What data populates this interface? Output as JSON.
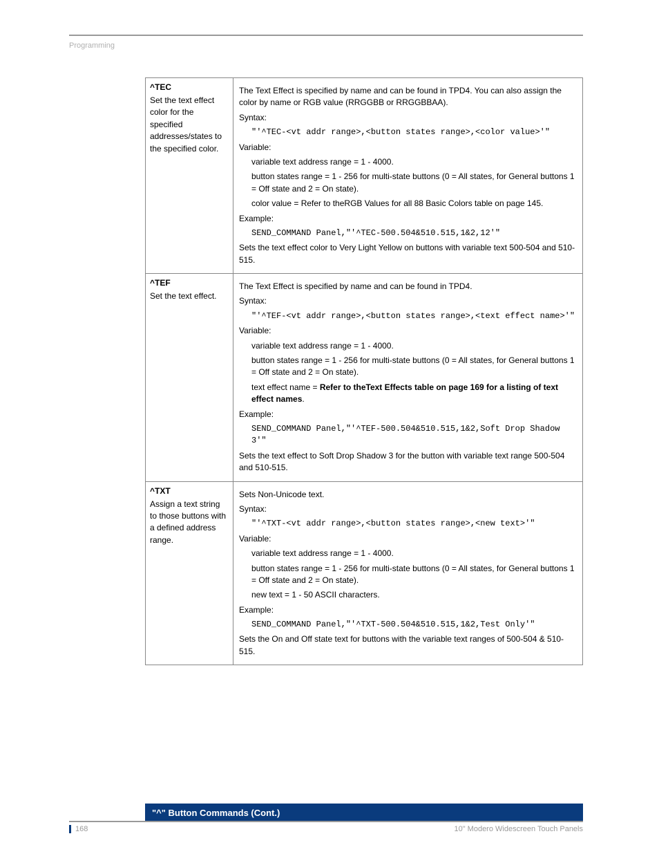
{
  "header": {
    "breadcrumb": "Programming"
  },
  "table": {
    "rows": [
      {
        "cmd": "^TEC",
        "cmd_desc": "Set the text effect color for the specified addresses/states to the specified color.",
        "intro": "The Text Effect is specified by name and can be found in TPD4. You can also assign the color by name or RGB value (RRGGBB or RRGGBBAA).",
        "syntax_label": "Syntax:",
        "syntax_code": "\"'^TEC-<vt addr range>,<button states range>,<color value>'\"",
        "variable_label": "Variable:",
        "var1": "variable text address range = 1 - 4000.",
        "var2": "button states range = 1 - 256 for multi-state buttons (0 = All states, for General buttons 1 = Off state and 2 = On state).",
        "var3_pre": "color value = Refer to the",
        "var3_bold": "",
        "var3_post": "RGB Values for all 88 Basic Colors table on page 145.",
        "example_label": "Example:",
        "example_code": "SEND_COMMAND Panel,\"'^TEC-500.504&510.515,1&2,12'\"",
        "result": "Sets the text effect color to Very Light Yellow on buttons with variable text 500-504 and 510-515."
      },
      {
        "cmd": "^TEF",
        "cmd_desc": "Set the text effect.",
        "intro": "The Text Effect is specified by name and can be found in TPD4.",
        "syntax_label": "Syntax:",
        "syntax_code": "\"'^TEF-<vt addr range>,<button states range>,<text effect name>'\"",
        "variable_label": "Variable:",
        "var1": "variable text address range = 1 - 4000.",
        "var2": "button states range = 1 - 256 for multi-state buttons (0 = All states, for General buttons 1 = Off state and 2 = On state).",
        "var3_pre": "text effect name = ",
        "var3_bold": "Refer to theText Effects table on page 169 for a listing of text effect names",
        "var3_post": ".",
        "example_label": "Example:",
        "example_code": "SEND_COMMAND Panel,\"'^TEF-500.504&510.515,1&2,Soft Drop Shadow 3'\"",
        "result": "Sets the text effect to Soft Drop Shadow 3 for the button with variable text range 500-504 and 510-515."
      },
      {
        "cmd": "^TXT",
        "cmd_desc": "Assign a text string to those buttons with a defined address range.",
        "intro": "Sets Non-Unicode text.",
        "syntax_label": "Syntax:",
        "syntax_code": "\"'^TXT-<vt addr range>,<button states range>,<new text>'\"",
        "variable_label": "Variable:",
        "var1": "variable text address range = 1 - 4000.",
        "var2": "button states range = 1 - 256 for multi-state buttons (0 = All states, for General buttons 1 = Off state and 2 = On state).",
        "var3_pre": "new text = 1 - 50 ASCII characters.",
        "var3_bold": "",
        "var3_post": "",
        "example_label": "Example:",
        "example_code": "SEND_COMMAND Panel,\"'^TXT-500.504&510.515,1&2,Test Only'\"",
        "result": "Sets the On and Off state text for buttons with the variable text ranges of 500-504 & 510-515."
      }
    ]
  },
  "sectionHeader": "\"^\" Button Commands (Cont.)",
  "footer": {
    "page": "168",
    "doc": "10\" Modero Widescreen Touch Panels"
  }
}
